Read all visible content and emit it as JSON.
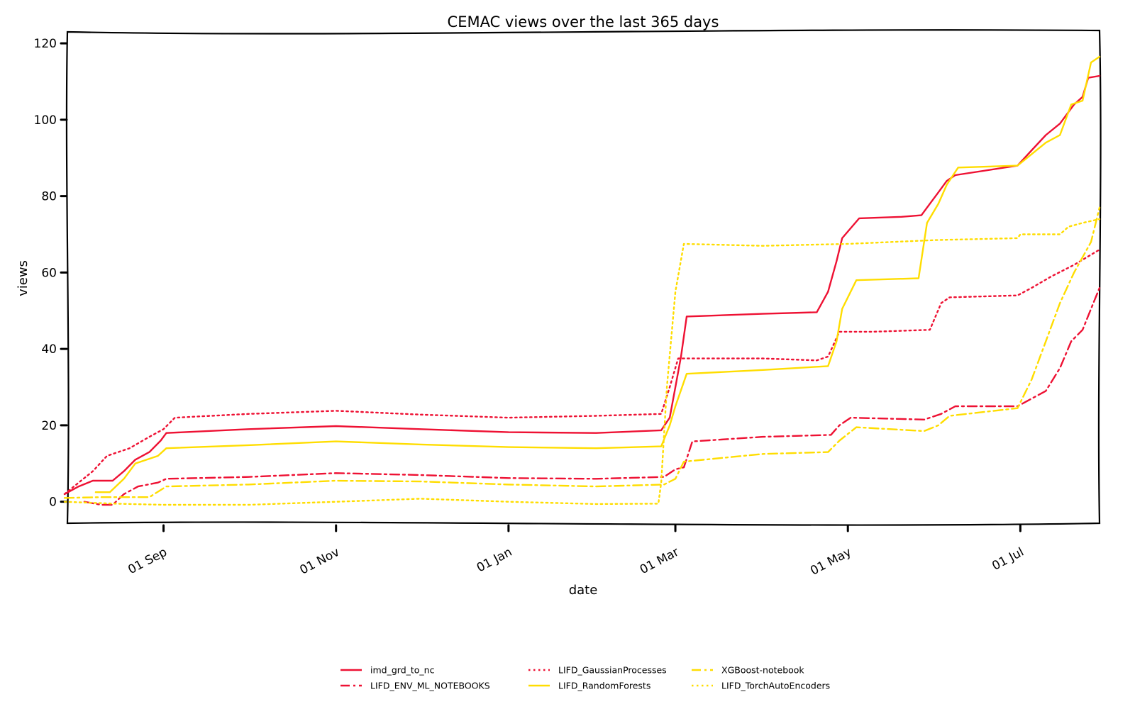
{
  "chart_data": {
    "type": "line",
    "title": "CEMAC views over the last 365 days",
    "xlabel": "date",
    "ylabel": "views",
    "x_domain": [
      "2022-07-29",
      "2023-07-29"
    ],
    "ylim": [
      -6,
      123
    ],
    "y_ticks": [
      0,
      20,
      40,
      60,
      80,
      100,
      120
    ],
    "x_ticks": [
      {
        "date": "2022-09-01",
        "label": "01 Sep"
      },
      {
        "date": "2022-11-01",
        "label": "01 Nov"
      },
      {
        "date": "2023-01-01",
        "label": "01 Jan"
      },
      {
        "date": "2023-03-01",
        "label": "01 Mar"
      },
      {
        "date": "2023-05-01",
        "label": "01 May"
      },
      {
        "date": "2023-07-01",
        "label": "01 Jul"
      }
    ],
    "grid": false,
    "legend_position": "bottom-center",
    "series": [
      {
        "name": "imd_grd_to_nc",
        "color": "#ee1133",
        "dash": "solid",
        "points": [
          [
            "2022-07-28",
            2
          ],
          [
            "2022-08-02",
            4
          ],
          [
            "2022-08-07",
            5.5
          ],
          [
            "2022-08-14",
            5.5
          ],
          [
            "2022-08-18",
            8
          ],
          [
            "2022-08-22",
            11
          ],
          [
            "2022-08-27",
            13
          ],
          [
            "2022-08-31",
            16
          ],
          [
            "2022-09-02",
            18
          ],
          [
            "2022-10-01",
            19
          ],
          [
            "2022-11-01",
            19.8
          ],
          [
            "2022-12-01",
            19
          ],
          [
            "2023-01-01",
            18.2
          ],
          [
            "2023-02-01",
            18
          ],
          [
            "2023-02-24",
            18.7
          ],
          [
            "2023-02-27",
            22
          ],
          [
            "2023-03-01",
            30
          ],
          [
            "2023-03-03",
            38
          ],
          [
            "2023-03-05",
            48.5
          ],
          [
            "2023-04-01",
            49.2
          ],
          [
            "2023-04-20",
            49.6
          ],
          [
            "2023-04-24",
            55
          ],
          [
            "2023-04-27",
            63
          ],
          [
            "2023-04-29",
            69
          ],
          [
            "2023-05-05",
            74.2
          ],
          [
            "2023-05-20",
            74.6
          ],
          [
            "2023-05-27",
            75
          ],
          [
            "2023-05-30",
            78
          ],
          [
            "2023-06-02",
            81
          ],
          [
            "2023-06-05",
            84
          ],
          [
            "2023-06-08",
            85.5
          ],
          [
            "2023-06-30",
            88
          ],
          [
            "2023-07-05",
            92
          ],
          [
            "2023-07-10",
            96
          ],
          [
            "2023-07-15",
            99
          ],
          [
            "2023-07-20",
            104
          ],
          [
            "2023-07-23",
            106
          ],
          [
            "2023-07-25",
            111
          ],
          [
            "2023-07-29",
            111.5
          ]
        ]
      },
      {
        "name": "LIFD_ENV_ML_NOTEBOOKS",
        "color": "#ee1133",
        "dash": "dashdot",
        "points": [
          [
            "2022-08-04",
            0
          ],
          [
            "2022-08-10",
            -0.8
          ],
          [
            "2022-08-14",
            -0.8
          ],
          [
            "2022-08-18",
            2
          ],
          [
            "2022-08-23",
            4
          ],
          [
            "2022-08-30",
            5
          ],
          [
            "2022-09-02",
            6
          ],
          [
            "2022-10-01",
            6.5
          ],
          [
            "2022-11-01",
            7.5
          ],
          [
            "2022-12-01",
            7
          ],
          [
            "2023-01-01",
            6.2
          ],
          [
            "2023-02-01",
            6
          ],
          [
            "2023-02-25",
            6.5
          ],
          [
            "2023-03-01",
            8.5
          ],
          [
            "2023-03-04",
            9
          ],
          [
            "2023-03-07",
            15.8
          ],
          [
            "2023-04-01",
            17
          ],
          [
            "2023-04-25",
            17.5
          ],
          [
            "2023-04-28",
            20
          ],
          [
            "2023-05-02",
            22
          ],
          [
            "2023-05-28",
            21.5
          ],
          [
            "2023-06-03",
            23
          ],
          [
            "2023-06-08",
            25
          ],
          [
            "2023-06-30",
            25
          ],
          [
            "2023-07-05",
            27
          ],
          [
            "2023-07-10",
            29
          ],
          [
            "2023-07-15",
            35
          ],
          [
            "2023-07-19",
            42
          ],
          [
            "2023-07-23",
            45
          ],
          [
            "2023-07-26",
            50.5
          ],
          [
            "2023-07-29",
            56
          ]
        ]
      },
      {
        "name": "LIFD_GaussianProcesses",
        "color": "#ee1133",
        "dash": "dotted",
        "points": [
          [
            "2022-07-28",
            2
          ],
          [
            "2022-08-02",
            5
          ],
          [
            "2022-08-07",
            8
          ],
          [
            "2022-08-12",
            12
          ],
          [
            "2022-08-20",
            14
          ],
          [
            "2022-08-27",
            17
          ],
          [
            "2022-09-01",
            19
          ],
          [
            "2022-09-05",
            22
          ],
          [
            "2022-10-01",
            23
          ],
          [
            "2022-11-01",
            23.8
          ],
          [
            "2022-12-01",
            22.8
          ],
          [
            "2023-01-01",
            22
          ],
          [
            "2023-02-01",
            22.5
          ],
          [
            "2023-02-24",
            23
          ],
          [
            "2023-02-27",
            30
          ],
          [
            "2023-03-02",
            37.5
          ],
          [
            "2023-04-01",
            37.5
          ],
          [
            "2023-04-20",
            37
          ],
          [
            "2023-04-24",
            38
          ],
          [
            "2023-04-28",
            44.5
          ],
          [
            "2023-05-10",
            44.5
          ],
          [
            "2023-05-30",
            45
          ],
          [
            "2023-06-03",
            52
          ],
          [
            "2023-06-06",
            53.5
          ],
          [
            "2023-06-30",
            54
          ],
          [
            "2023-07-05",
            56
          ],
          [
            "2023-07-12",
            59
          ],
          [
            "2023-07-20",
            62
          ],
          [
            "2023-07-29",
            66
          ]
        ]
      },
      {
        "name": "LIFD_RandomForests",
        "color": "#ffdd00",
        "dash": "solid",
        "points": [
          [
            "2022-08-08",
            2.5
          ],
          [
            "2022-08-13",
            2.5
          ],
          [
            "2022-08-18",
            6
          ],
          [
            "2022-08-22",
            10
          ],
          [
            "2022-08-30",
            12
          ],
          [
            "2022-09-02",
            14
          ],
          [
            "2022-10-01",
            14.8
          ],
          [
            "2022-11-01",
            15.8
          ],
          [
            "2022-12-01",
            15
          ],
          [
            "2023-01-01",
            14.3
          ],
          [
            "2023-02-01",
            14
          ],
          [
            "2023-02-24",
            14.5
          ],
          [
            "2023-02-27",
            20
          ],
          [
            "2023-03-01",
            25
          ],
          [
            "2023-03-05",
            33.5
          ],
          [
            "2023-04-01",
            34.5
          ],
          [
            "2023-04-24",
            35.5
          ],
          [
            "2023-04-27",
            42
          ],
          [
            "2023-04-29",
            50.5
          ],
          [
            "2023-05-04",
            58
          ],
          [
            "2023-05-26",
            58.5
          ],
          [
            "2023-05-29",
            73
          ],
          [
            "2023-06-02",
            78
          ],
          [
            "2023-06-05",
            83
          ],
          [
            "2023-06-09",
            87.5
          ],
          [
            "2023-06-30",
            88
          ],
          [
            "2023-07-05",
            91
          ],
          [
            "2023-07-10",
            94
          ],
          [
            "2023-07-15",
            96
          ],
          [
            "2023-07-19",
            104
          ],
          [
            "2023-07-23",
            105
          ],
          [
            "2023-07-26",
            115
          ],
          [
            "2023-07-29",
            116.5
          ]
        ]
      },
      {
        "name": "XGBoost-notebook",
        "color": "#ffdd00",
        "dash": "dashdot",
        "points": [
          [
            "2022-07-28",
            1
          ],
          [
            "2022-08-10",
            1.2
          ],
          [
            "2022-08-20",
            1.2
          ],
          [
            "2022-08-27",
            1.2
          ],
          [
            "2022-09-02",
            4
          ],
          [
            "2022-10-01",
            4.5
          ],
          [
            "2022-11-01",
            5.5
          ],
          [
            "2022-12-01",
            5.3
          ],
          [
            "2023-01-01",
            4.5
          ],
          [
            "2023-02-01",
            4
          ],
          [
            "2023-02-25",
            4.5
          ],
          [
            "2023-03-01",
            6
          ],
          [
            "2023-03-04",
            10.5
          ],
          [
            "2023-04-01",
            12.5
          ],
          [
            "2023-04-24",
            13
          ],
          [
            "2023-04-28",
            16
          ],
          [
            "2023-05-04",
            19.5
          ],
          [
            "2023-05-28",
            18.5
          ],
          [
            "2023-06-02",
            20
          ],
          [
            "2023-06-06",
            22.5
          ],
          [
            "2023-06-30",
            24.5
          ],
          [
            "2023-07-05",
            32
          ],
          [
            "2023-07-10",
            42
          ],
          [
            "2023-07-15",
            52
          ],
          [
            "2023-07-20",
            60
          ],
          [
            "2023-07-26",
            68
          ],
          [
            "2023-07-29",
            77
          ]
        ]
      },
      {
        "name": "LIFD_TorchAutoEncoders",
        "color": "#ffdd00",
        "dash": "dotted",
        "points": [
          [
            "2022-07-28",
            0
          ],
          [
            "2022-08-15",
            -0.5
          ],
          [
            "2022-09-01",
            -0.8
          ],
          [
            "2022-10-01",
            -0.8
          ],
          [
            "2022-11-01",
            0
          ],
          [
            "2022-12-01",
            0.8
          ],
          [
            "2023-01-01",
            0
          ],
          [
            "2023-02-01",
            -0.6
          ],
          [
            "2023-02-23",
            -0.5
          ],
          [
            "2023-02-24",
            5
          ],
          [
            "2023-02-26",
            30
          ],
          [
            "2023-03-01",
            55
          ],
          [
            "2023-03-04",
            67.5
          ],
          [
            "2023-04-01",
            67
          ],
          [
            "2023-05-01",
            67.5
          ],
          [
            "2023-06-01",
            68.5
          ],
          [
            "2023-06-30",
            69
          ],
          [
            "2023-07-01",
            70
          ],
          [
            "2023-07-15",
            70
          ],
          [
            "2023-07-18",
            72
          ],
          [
            "2023-07-23",
            73
          ],
          [
            "2023-07-29",
            74
          ]
        ]
      }
    ]
  }
}
